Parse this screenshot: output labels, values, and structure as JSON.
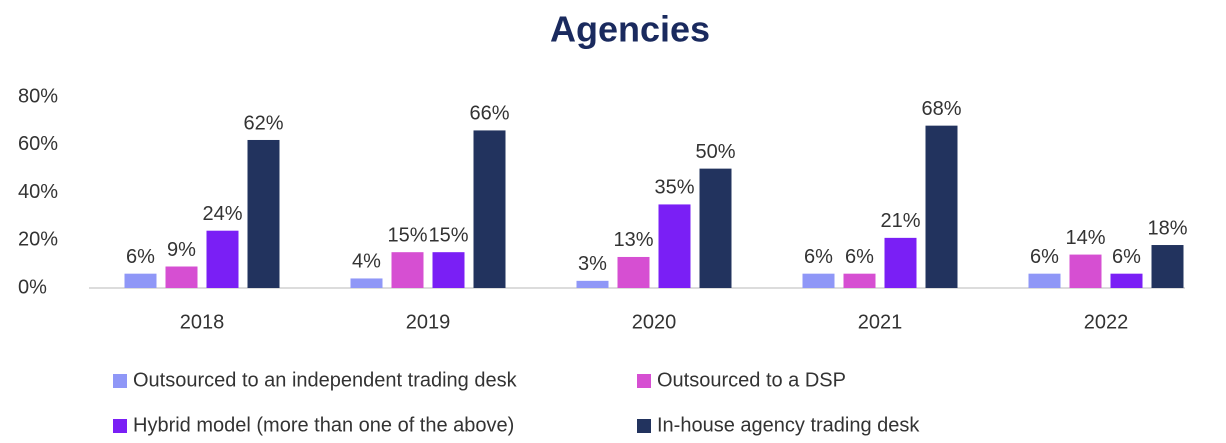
{
  "chart_data": {
    "type": "bar",
    "title": "Agencies",
    "categories": [
      "2018",
      "2019",
      "2020",
      "2021",
      "2022"
    ],
    "series": [
      {
        "name": "Outsourced to an independent trading desk",
        "color": "#8f97f7",
        "values": [
          6,
          4,
          3,
          6,
          6
        ],
        "value_labels": [
          "6%",
          "4%",
          "3%",
          "6%",
          "6%"
        ]
      },
      {
        "name": "Outsourced to a DSP",
        "color": "#d64fd2",
        "values": [
          9,
          15,
          13,
          6,
          14
        ],
        "value_labels": [
          "9%",
          "15%",
          "13%",
          "6%",
          "14%"
        ]
      },
      {
        "name": "Hybrid model (more than one of the above)",
        "color": "#7a1ff5",
        "values": [
          24,
          15,
          35,
          21,
          6
        ],
        "value_labels": [
          "24%",
          "15%",
          "35%",
          "21%",
          "6%"
        ]
      },
      {
        "name": "In-house agency trading desk",
        "color": "#22335e",
        "values": [
          62,
          66,
          50,
          68,
          18
        ],
        "value_labels": [
          "62%",
          "66%",
          "50%",
          "68%",
          "18%"
        ]
      }
    ],
    "ylim": [
      0,
      80
    ],
    "yticks": [
      {
        "value": 0,
        "label": "0%"
      },
      {
        "value": 20,
        "label": "20%"
      },
      {
        "value": 40,
        "label": "40%"
      },
      {
        "value": 60,
        "label": "60%"
      },
      {
        "value": 80,
        "label": "80%"
      }
    ],
    "grid": false,
    "legend": "bottom"
  }
}
